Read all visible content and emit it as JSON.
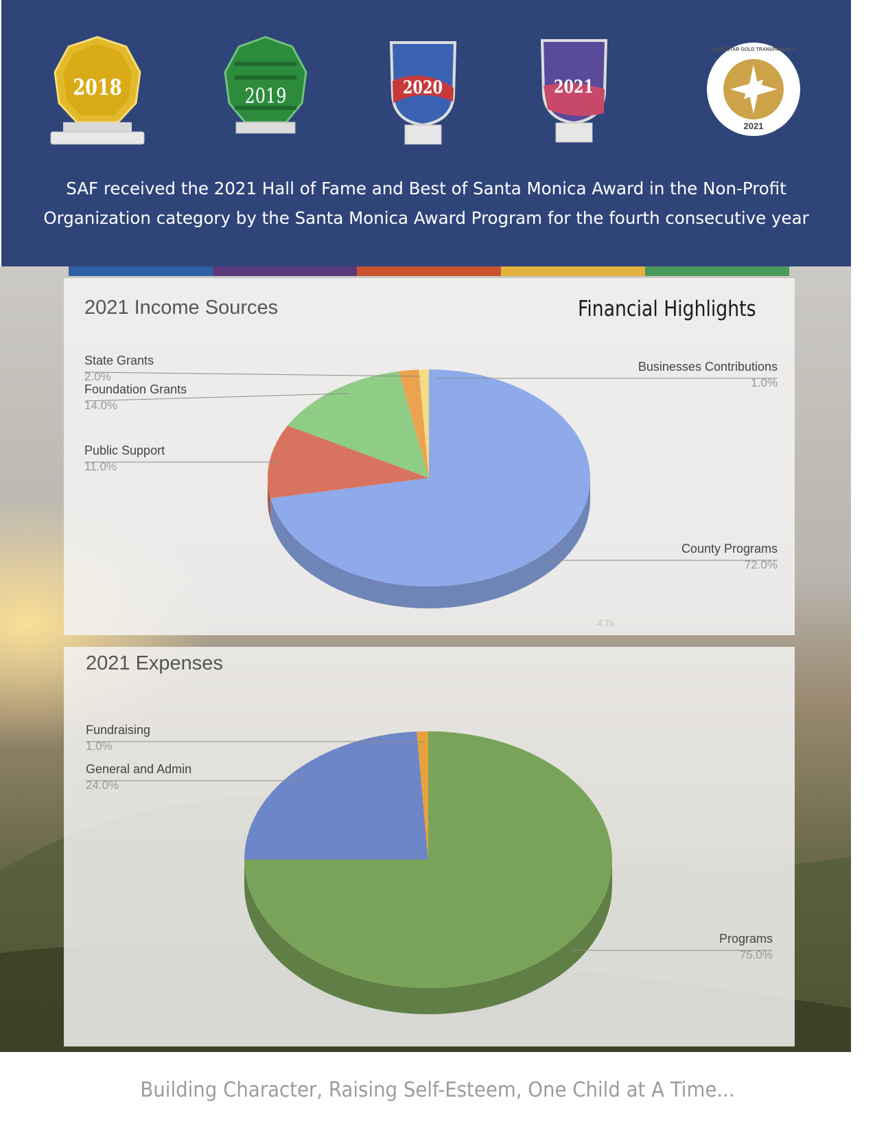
{
  "banner": {
    "awards": [
      {
        "year": "2018",
        "icon": "gold-award-plaque-icon"
      },
      {
        "year": "2019",
        "icon": "green-award-plaque-icon"
      },
      {
        "year": "2020",
        "icon": "shield-award-plaque-icon"
      },
      {
        "year": "2021",
        "icon": "shield-award-plaque-icon"
      }
    ],
    "guidestar": {
      "top_text": "GUIDESTAR GOLD TRANSPARENCY",
      "year": "2021",
      "icon": "guidestar-seal-icon"
    },
    "line1": "SAF received the 2021 Hall of Fame and Best of Santa Monica Award in the Non-Profit",
    "line2": "Organization category by the Santa Monica Award Program for the fourth consecutive year"
  },
  "stripe_colors": [
    "#2e5fa3",
    "#5a3a7a",
    "#c8532e",
    "#e3b23c",
    "#4a9a5c"
  ],
  "financial_title": "Financial Highlights",
  "zoom_text": "4.7x",
  "chart_data": [
    {
      "type": "pie",
      "title": "2021 Income Sources",
      "slices": [
        {
          "label": "County Programs",
          "value": 72.0,
          "display": "72.0%",
          "color": "#8eaaea"
        },
        {
          "label": "Public Support",
          "value": 11.0,
          "display": "11.0%",
          "color": "#d8735f"
        },
        {
          "label": "Foundation Grants",
          "value": 14.0,
          "display": "14.0%",
          "color": "#8fcc85"
        },
        {
          "label": "State Grants",
          "value": 2.0,
          "display": "2.0%",
          "color": "#eba350"
        },
        {
          "label": "Businesses Contributions",
          "value": 1.0,
          "display": "1.0%",
          "color": "#f2dc86"
        }
      ]
    },
    {
      "type": "pie",
      "title": "2021 Expenses",
      "slices": [
        {
          "label": "Programs",
          "value": 75.0,
          "display": "75.0%",
          "color": "#7aa35a"
        },
        {
          "label": "General and Admin",
          "value": 24.0,
          "display": "24.0%",
          "color": "#6d86c7"
        },
        {
          "label": "Fundraising",
          "value": 1.0,
          "display": "1.0%",
          "color": "#e6a23c"
        }
      ]
    }
  ],
  "tagline": "Building Character, Raising Self-Esteem, One Child at A Time..."
}
